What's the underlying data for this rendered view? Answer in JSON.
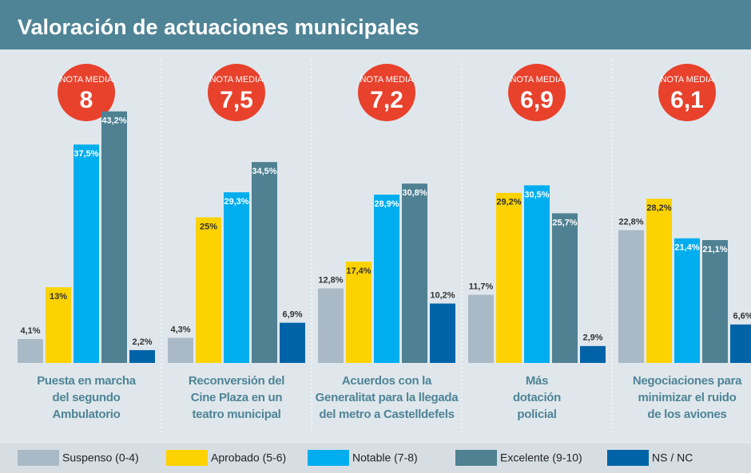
{
  "chart_data": {
    "type": "bar",
    "title": "Valoración de actuaciones municipales",
    "badge_label": "NOTA MEDIA",
    "average_labels": [
      "8",
      "7,5",
      "7,2",
      "6,9",
      "6,1"
    ],
    "categories": [
      "Puesta en marcha\ndel segundo\nAmbulatorio",
      "Reconversión del\nCine Plaza en un\nteatro municipal",
      "Acuerdos con la\nGeneralitat para la llegada\ndel metro a Castelldefels",
      "Más\ndotación\npolicial",
      "Negociaciones para\nminimizar el ruido\nde los aviones"
    ],
    "series": [
      {
        "name": "Suspenso (0-4)",
        "color": "#a9b9c5",
        "values": [
          4.1,
          4.3,
          12.8,
          11.7,
          22.8
        ],
        "value_labels": [
          "4,1%",
          "4,3%",
          "12,8%",
          "11,7%",
          "22,8%"
        ]
      },
      {
        "name": "Aprobado (5-6)",
        "color": "#fcd200",
        "values": [
          13,
          25,
          17.4,
          29.2,
          28.2
        ],
        "value_labels": [
          "13%",
          "25%",
          "17,4%",
          "29,2%",
          "28,2%"
        ]
      },
      {
        "name": "Notable (7-8)",
        "color": "#00aeef",
        "values": [
          37.5,
          29.3,
          28.9,
          30.5,
          21.4
        ],
        "value_labels": [
          "37,5%",
          "29,3%",
          "28,9%",
          "30,5%",
          "21,4%"
        ]
      },
      {
        "name": "Excelente (9-10)",
        "color": "#4f8193",
        "values": [
          43.2,
          34.5,
          30.8,
          25.7,
          21.1
        ],
        "value_labels": [
          "43,2%",
          "34,5%",
          "30,8%",
          "25,7%",
          "21,1%"
        ]
      },
      {
        "name": "NS / NC",
        "color": "#0063a8",
        "values": [
          2.2,
          6.9,
          10.2,
          2.9,
          6.6
        ],
        "value_labels": [
          "2,2%",
          "6,9%",
          "10,2%",
          "2,9%",
          "6,6%"
        ]
      }
    ]
  }
}
